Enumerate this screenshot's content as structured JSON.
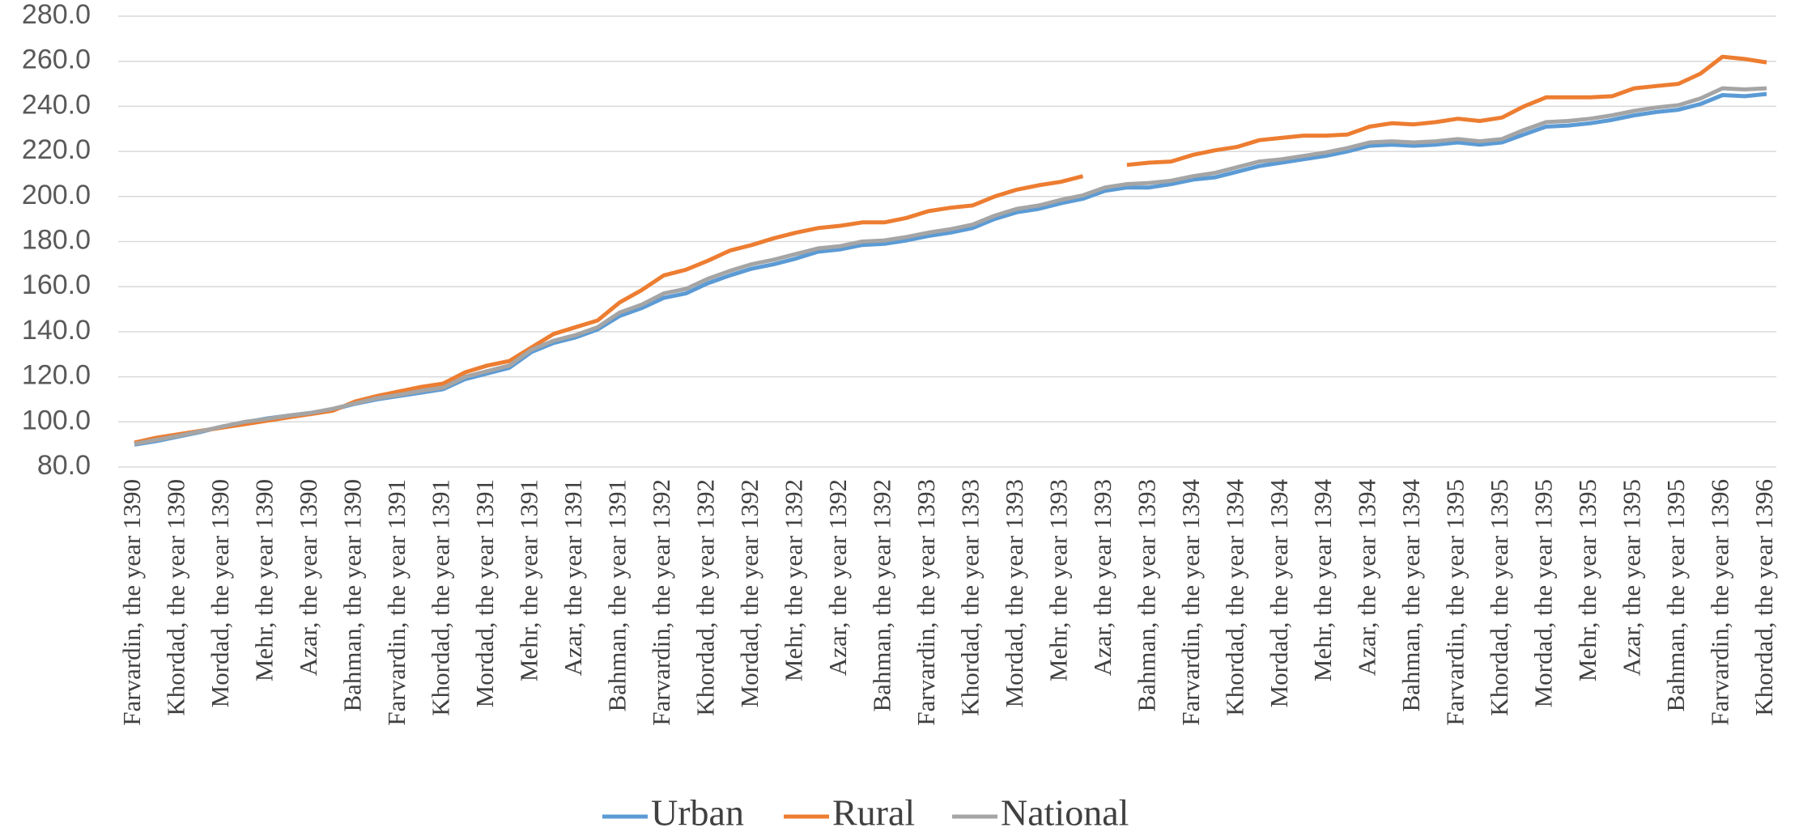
{
  "chart_data": {
    "type": "line",
    "categories": [
      "Farvardin, the year 1390",
      null,
      "Khordad, the year 1390",
      null,
      "Mordad, the year 1390",
      null,
      "Mehr, the year 1390",
      null,
      "Azar, the year 1390",
      null,
      "Bahman, the year 1390",
      null,
      "Farvardin, the year 1391",
      null,
      "Khordad, the year 1391",
      null,
      "Mordad, the year 1391",
      null,
      "Mehr, the year 1391",
      null,
      "Azar, the year 1391",
      null,
      "Bahman, the year 1391",
      null,
      "Farvardin, the year 1392",
      null,
      "Khordad, the year 1392",
      null,
      "Mordad, the year 1392",
      null,
      "Mehr, the year 1392",
      null,
      "Azar, the year 1392",
      null,
      "Bahman, the year 1392",
      null,
      "Farvardin, the year 1393",
      null,
      "Khordad, the year 1393",
      null,
      "Mordad, the year 1393",
      null,
      "Mehr, the year 1393",
      null,
      "Azar, the year 1393",
      null,
      "Bahman, the year 1393",
      null,
      "Farvardin, the year 1394",
      null,
      "Khordad, the year 1394",
      null,
      "Mordad, the year 1394",
      null,
      "Mehr, the year 1394",
      null,
      "Azar, the year 1394",
      null,
      "Bahman, the year 1394",
      null,
      "Farvardin, the year 1395",
      null,
      "Khordad, the year 1395",
      null,
      "Mordad, the year 1395",
      null,
      "Mehr, the year 1395",
      null,
      "Azar, the year 1395",
      null,
      "Bahman, the year 1395",
      null,
      "Farvardin, the year 1396",
      null,
      "Khordad, the year 1396"
    ],
    "series": [
      {
        "name": "Urban",
        "color": "#5b9bd5",
        "values": [
          89.9,
          91.5,
          93.5,
          95.5,
          98,
          99.8,
          101.5,
          102.8,
          104,
          105.5,
          108,
          110,
          111.5,
          113,
          114.5,
          119,
          121.5,
          124,
          131,
          135,
          137.5,
          141,
          147,
          150.5,
          155,
          157,
          161.5,
          165,
          168,
          170,
          172.5,
          175.5,
          176.5,
          178.5,
          179,
          180.5,
          182.5,
          184,
          186,
          190,
          193,
          194.5,
          197,
          199,
          202.5,
          204,
          204,
          205.5,
          207.5,
          208.5,
          211,
          213.5,
          215,
          216.5,
          218,
          220,
          222.5,
          223,
          222.5,
          223,
          224,
          223,
          224,
          227.5,
          231,
          231.5,
          232.5,
          234,
          236,
          237.5,
          238.5,
          241,
          245,
          244.5,
          245.5
        ]
      },
      {
        "name": "Rural",
        "color": "#ed7d31",
        "values": [
          90.8,
          93,
          94.5,
          96,
          97.5,
          99,
          100.5,
          102,
          103.5,
          105,
          109,
          111.5,
          113.5,
          115.5,
          117,
          122,
          125,
          127,
          133,
          139,
          142,
          145,
          153,
          158.5,
          165,
          167.5,
          171.5,
          176,
          178.5,
          181.5,
          184,
          186,
          187,
          188.5,
          188.5,
          190.5,
          193.5,
          195,
          196,
          200,
          203,
          205,
          206.5,
          209,
          null,
          214,
          215,
          215.5,
          218.5,
          220.5,
          222,
          225,
          226,
          227,
          227,
          227.5,
          231,
          232.5,
          232,
          233,
          234.5,
          233.5,
          235,
          240,
          244,
          244,
          244,
          244.5,
          248,
          249,
          250,
          254.5,
          262,
          261,
          259.5
        ]
      },
      {
        "name": "National",
        "color": "#a5a5a5",
        "values": [
          90.2,
          92,
          93.8,
          95.8,
          98,
          100,
          101.3,
          102.8,
          104,
          105.8,
          108.2,
          110.5,
          112,
          113.8,
          115.2,
          120,
          122.5,
          125,
          132,
          136,
          138.5,
          142,
          148.5,
          152,
          157,
          159,
          163.5,
          167,
          170,
          172,
          174.5,
          177,
          178,
          180,
          180.5,
          182,
          184,
          185.5,
          187.5,
          191.5,
          194.5,
          196,
          198.5,
          200.5,
          204,
          205.5,
          206,
          207,
          209,
          210.5,
          213,
          215.5,
          216.5,
          218,
          219.5,
          221.5,
          224,
          224.5,
          224,
          224.5,
          225.5,
          224.5,
          225.5,
          229.5,
          233,
          233.5,
          234.5,
          236,
          238,
          239.5,
          240.5,
          243.5,
          248,
          247.5,
          248
        ]
      }
    ],
    "ylim": [
      80,
      280
    ],
    "yticks": [
      {
        "value": 80,
        "label": "80.0"
      },
      {
        "value": 100,
        "label": "100.0"
      },
      {
        "value": 120,
        "label": "120.0"
      },
      {
        "value": 140,
        "label": "140.0"
      },
      {
        "value": 160,
        "label": "160.0"
      },
      {
        "value": 180,
        "label": "180.0"
      },
      {
        "value": 200,
        "label": "200.0"
      },
      {
        "value": 220,
        "label": "220.0"
      },
      {
        "value": 240,
        "label": "240.0"
      },
      {
        "value": 260,
        "label": "260.0"
      },
      {
        "value": 280,
        "label": "280.0"
      }
    ],
    "grid": true,
    "legend": "bottom"
  }
}
